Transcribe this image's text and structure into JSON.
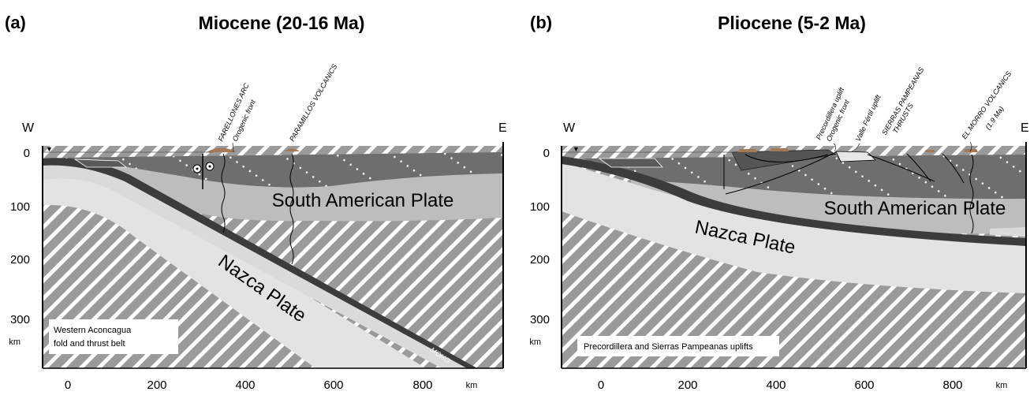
{
  "panel_a": {
    "letter": "(a)",
    "title": "Miocene (20-16 Ma)",
    "west": "W",
    "east": "E",
    "depth_ticks": [
      "0",
      "100",
      "200",
      "300"
    ],
    "depth_unit": "km",
    "distance_ticks": [
      "0",
      "200",
      "400",
      "600",
      "800"
    ],
    "distance_unit": "km",
    "upper_plate_label": "South American Plate",
    "slab_label": "Nazca Plate",
    "moho_label": "MOHO",
    "annotations": [
      "FARELLONES ARC",
      "Orogenic front",
      "PARAMILLOS VOLCANICS"
    ],
    "box_line1": "Western Aconcagua",
    "box_line2": "fold and thrust belt"
  },
  "panel_b": {
    "letter": "(b)",
    "title": "Pliocene (5-2 Ma)",
    "west": "W",
    "east": "E",
    "depth_ticks": [
      "0",
      "100",
      "200",
      "300"
    ],
    "depth_unit": "km",
    "distance_ticks": [
      "0",
      "200",
      "400",
      "600",
      "800"
    ],
    "distance_unit": "km",
    "upper_plate_label": "South American Plate",
    "slab_label": "Nazca Plate",
    "annotations": [
      "Precordillera uplift",
      "Orogenic front",
      "Valle Fértil uplift",
      "SIERRAS PAMPEANAS",
      "THRUSTS",
      "EL MORRO VOLCANICS",
      "(1.9 Ma)"
    ],
    "box_text": "Precordillera and Sierras Pampeanas uplifts"
  },
  "colors": {
    "upper_crust": "#6e6e6e",
    "lower_crust": "#bdbdbd",
    "mantle_hatch_bg": "#9a9a9a",
    "slab_crust": "#e3e3e3",
    "slab_top": "#3c3c3c",
    "volcanics": "#a37a55"
  }
}
